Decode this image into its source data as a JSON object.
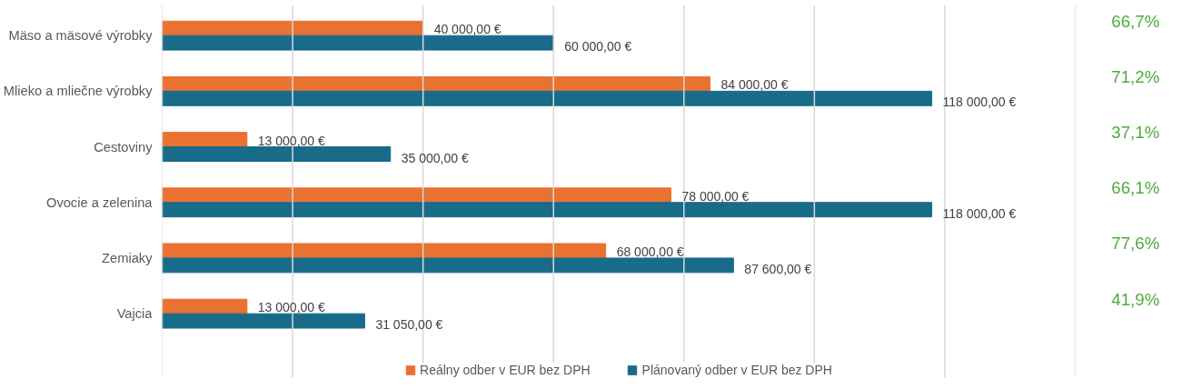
{
  "chart_data": {
    "type": "bar",
    "orientation": "horizontal",
    "categories": [
      "Mäso a mäsové výrobky",
      "Mlieko a mliečne výrobky",
      "Cestoviny",
      "Ovocie a zelenina",
      "Zemiaky",
      "Vajcia"
    ],
    "series": [
      {
        "name": "Reálny odber v EUR bez DPH",
        "color": "#e97132",
        "values": [
          40000,
          84000,
          13000,
          78000,
          68000,
          13000
        ],
        "value_labels": [
          "40 000,00 €",
          "84 000,00 €",
          "13 000,00 €",
          "78 000,00 €",
          "68 000,00 €",
          "13 000,00 €"
        ]
      },
      {
        "name": "Plánovaný odber v EUR bez DPH",
        "color": "#196b8a",
        "values": [
          60000,
          118000,
          35000,
          118000,
          87600,
          31050
        ],
        "value_labels": [
          "60 000,00 €",
          "118 000,00 €",
          "35 000,00 €",
          "118 000,00 €",
          "87 600,00 €",
          "31 050,00 €"
        ]
      }
    ],
    "xlim": [
      0,
      140000
    ],
    "xticks": [
      {
        "value": 0,
        "label": null
      },
      {
        "value": 20000,
        "label": null
      },
      {
        "value": 40000,
        "label": null
      },
      {
        "value": 60000,
        "label": null
      },
      {
        "value": 80000,
        "label": null
      },
      {
        "value": 100000,
        "label": null
      },
      {
        "value": 120000,
        "label": null
      },
      {
        "value": 140000,
        "label": null
      }
    ],
    "annotations": [
      "66,7%",
      "71,2%",
      "37,1%",
      "66,1%",
      "77,6%",
      "41,9%"
    ],
    "grid": "x",
    "legend": "bottom",
    "tick_labels": "y"
  }
}
